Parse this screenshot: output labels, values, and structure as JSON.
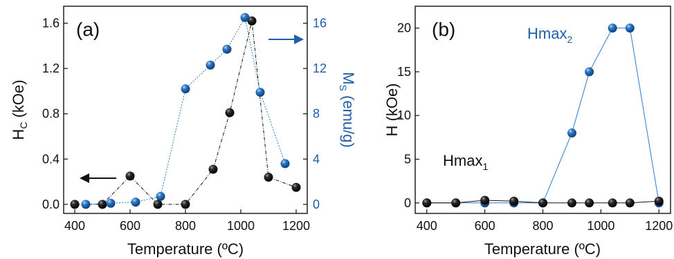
{
  "colors": {
    "black": "#111111",
    "blue": "#1f5fa8",
    "blue_light": "#2f78c8"
  },
  "chart_data": [
    {
      "type": "scatter",
      "panel_label": "(a)",
      "xlabel": "Temperature (ºC)",
      "xlim": [
        360,
        1240
      ],
      "xticks": [
        400,
        600,
        800,
        1000,
        1200
      ],
      "ylabel_left_main": "H",
      "ylabel_left_sub": "C",
      "ylabel_left_unit": " (kOe)",
      "ylim_left": [
        -0.08,
        1.75
      ],
      "yticks_left": [
        "0.0",
        "0.4",
        "0.8",
        "1.2",
        "1.6"
      ],
      "ylabel_right_main": "M",
      "ylabel_right_sub": "S",
      "ylabel_right_unit": " (emu/g)",
      "ylim_right": [
        -0.8,
        17.5
      ],
      "yticks_right": [
        "0",
        "4",
        "8",
        "12",
        "16"
      ],
      "series": [
        {
          "axis": "left",
          "color": "black",
          "x": [
            400,
            500,
            600,
            700,
            800,
            900,
            960,
            1040,
            1100,
            1200
          ],
          "y": [
            0.0,
            0.0,
            0.25,
            0.0,
            0.0,
            0.31,
            0.81,
            1.62,
            0.24,
            0.15
          ]
        },
        {
          "axis": "right",
          "color": "blue",
          "x": [
            440,
            530,
            620,
            710,
            800,
            890,
            950,
            1015,
            1070,
            1160
          ],
          "y": [
            0.0,
            0.1,
            0.2,
            0.7,
            10.2,
            12.3,
            13.7,
            16.5,
            9.9,
            3.6
          ]
        }
      ]
    },
    {
      "type": "scatter",
      "panel_label": "(b)",
      "xlabel": "Temperature (ºC)",
      "xlim": [
        360,
        1240
      ],
      "xticks": [
        400,
        600,
        800,
        1000,
        1200
      ],
      "ylabel": "H (kOe)",
      "ylim": [
        -1.2,
        22.5
      ],
      "yticks": [
        "0",
        "5",
        "10",
        "15",
        "20"
      ],
      "annotations": [
        {
          "main": "Hmax",
          "sub": "1",
          "color": "black"
        },
        {
          "main": "Hmax",
          "sub": "2",
          "color": "blue"
        }
      ],
      "series": [
        {
          "color": "blue",
          "x": [
            400,
            500,
            600,
            700,
            800,
            900,
            960,
            1040,
            1100,
            1200
          ],
          "y": [
            0,
            0,
            0,
            0,
            0,
            8,
            15,
            20,
            20,
            0
          ]
        },
        {
          "color": "black",
          "x": [
            400,
            500,
            600,
            700,
            800,
            900,
            960,
            1040,
            1100,
            1200
          ],
          "y": [
            0,
            0,
            0.3,
            0.2,
            0,
            0,
            0,
            0,
            0,
            0.2
          ]
        }
      ]
    }
  ]
}
